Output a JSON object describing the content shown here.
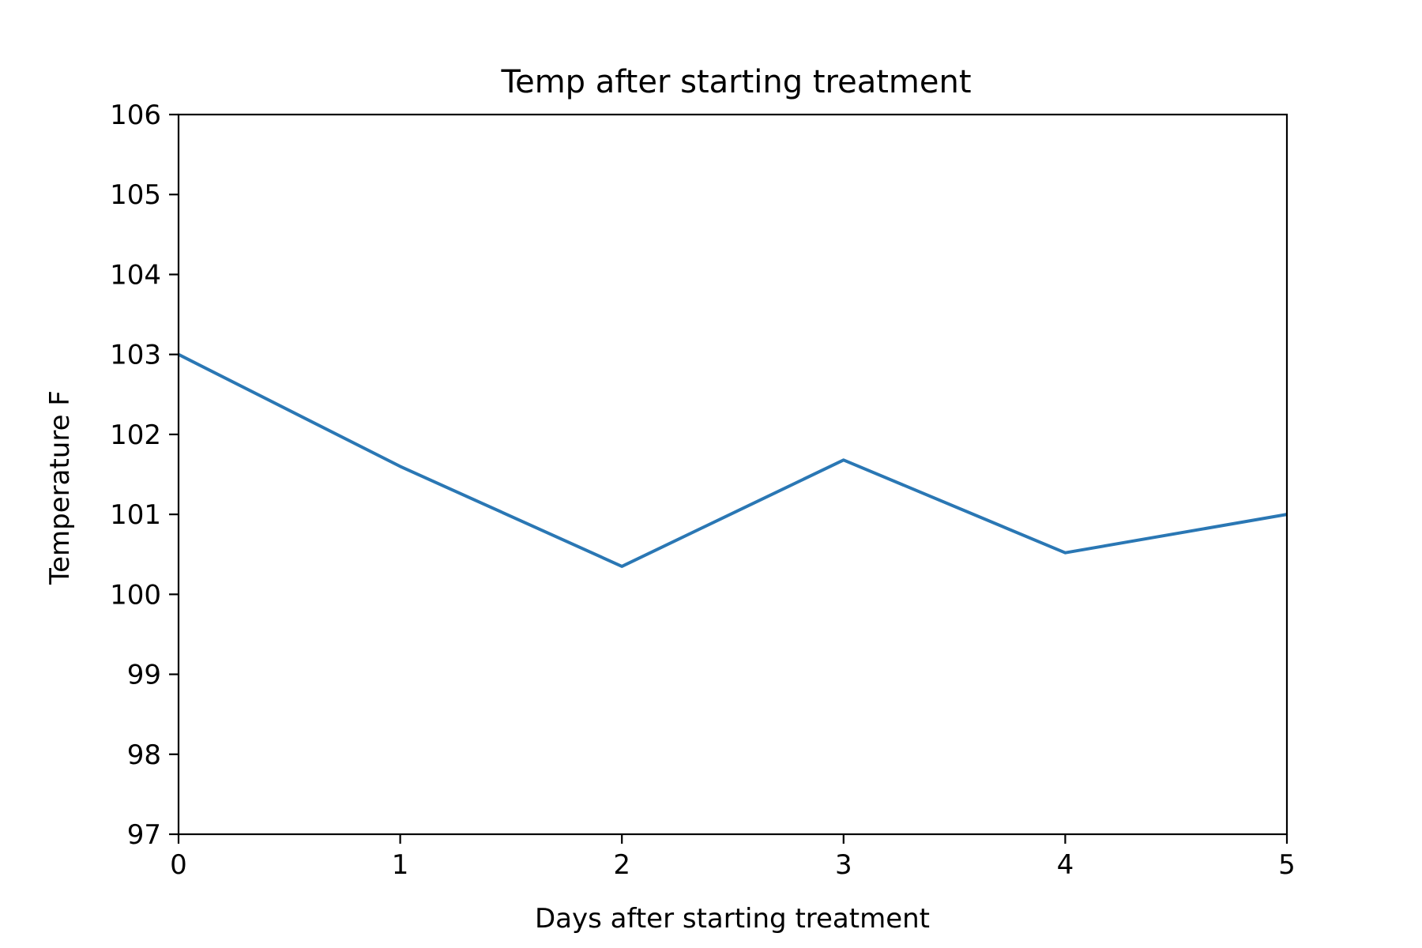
{
  "chart_data": {
    "type": "line",
    "title": "Temp after starting treatment",
    "xlabel": "Days after starting treatment",
    "ylabel": "Temperature F",
    "x": [
      0,
      1,
      2,
      3,
      4,
      5
    ],
    "series": [
      {
        "values": [
          103.0,
          101.6,
          100.35,
          101.68,
          100.52,
          101.0
        ]
      }
    ],
    "xlim": [
      0,
      5
    ],
    "ylim": [
      97,
      106
    ],
    "xticks": [
      0,
      1,
      2,
      3,
      4,
      5
    ],
    "yticks": [
      97,
      98,
      99,
      100,
      101,
      102,
      103,
      104,
      105,
      106
    ],
    "grid": false,
    "legend": "none",
    "colors": {
      "line": "#2a77b4",
      "axes": "#000000"
    }
  }
}
